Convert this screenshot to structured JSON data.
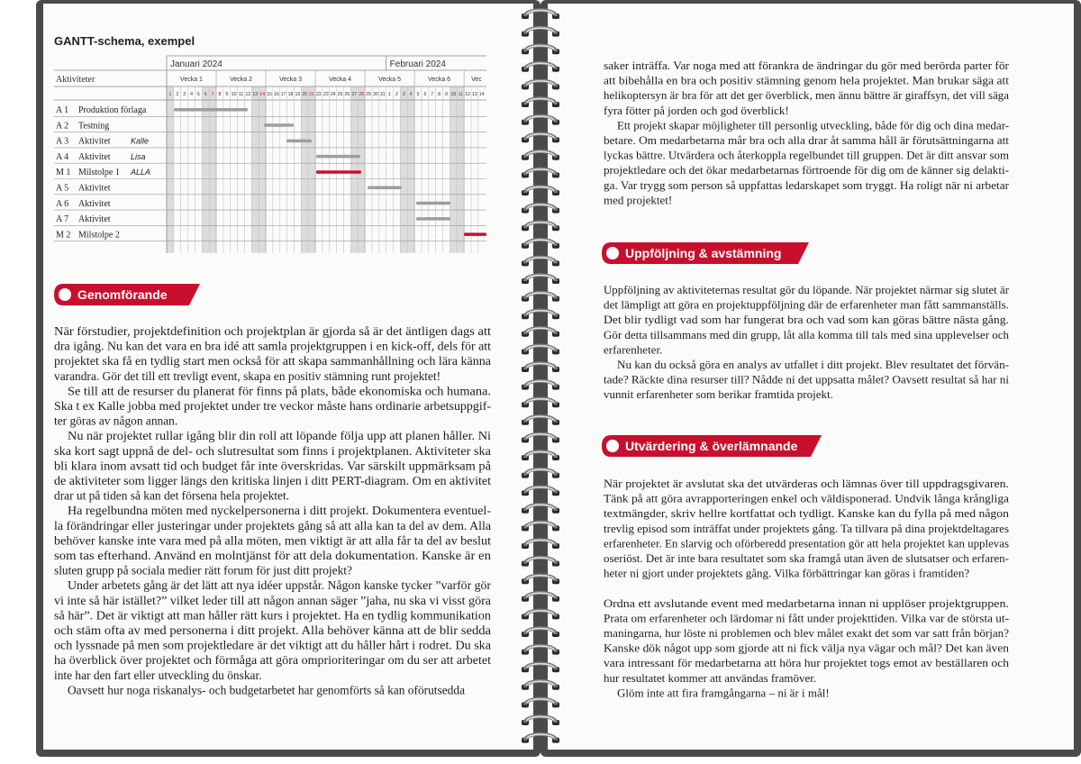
{
  "left_page": {
    "gantt": {
      "title": "GANTT-schema, exempel",
      "header": "Aktiviteter",
      "months": [
        "Januari 2024",
        "Februari 2024"
      ],
      "weeks": [
        "Vecka 1",
        "Vecka 2",
        "Vecka 3",
        "Vecka 4",
        "Vecka 5",
        "Vecka 6",
        "Vec"
      ],
      "days": [
        1,
        2,
        3,
        4,
        5,
        6,
        7,
        8,
        9,
        10,
        11,
        12,
        13,
        14,
        15,
        16,
        17,
        18,
        19,
        20,
        21,
        22,
        23,
        24,
        25,
        26,
        27,
        28,
        29,
        30,
        31,
        1,
        2,
        3,
        4,
        5,
        6,
        7,
        8,
        9,
        10,
        11,
        12,
        13,
        14
      ],
      "rows": [
        {
          "code": "A 1",
          "name": "Produktion förlaga"
        },
        {
          "code": "A 2",
          "name": "Testning"
        },
        {
          "code": "A 3",
          "name": "Aktivitet",
          "person": "Kalle"
        },
        {
          "code": "A 4",
          "name": "Aktivitet",
          "person": "Lisa"
        },
        {
          "code": "M 1",
          "name": "Milstolpe 1",
          "person": "ALLA"
        },
        {
          "code": "A 5",
          "name": "Aktivitet"
        },
        {
          "code": "A 6",
          "name": "Aktivitet"
        },
        {
          "code": "A 7",
          "name": "Aktivitet"
        },
        {
          "code": "M 2",
          "name": "Milstolpe 2"
        }
      ]
    },
    "section": {
      "heading": "Genomförande",
      "paragraphs": [
        {
          "indent": false,
          "lines": [
            "När förstudier, projektdefinition och projektplan är gjorda så är det äntligen dags att",
            "dra igång. Nu kan det vara en bra idé att samla projektgruppen i en kick-off, dels för att",
            "projektet ska få en tydlig start men också för att skapa sammanhållning och lära känna",
            "varandra. Gör det till ett trevligt event, skapa en positiv stämning runt projektet!"
          ]
        },
        {
          "indent": true,
          "lines": [
            "Se till att de resurser du planerat för finns på plats, både ekonomiska och humana.",
            "Ska t ex Kalle jobba med projektet under tre veckor måste hans ordinarie arbetsuppgif-",
            "ter göras av någon annan."
          ]
        },
        {
          "indent": true,
          "lines": [
            "Nu när projektet rullar igång blir din roll att löpande följa upp att planen håller. Ni",
            "ska kort sagt uppnå de del- och slutresultat som finns i projektplanen. Aktiviteter ska",
            "bli klara inom avsatt tid och budget får inte överskridas. Var särskilt uppmärksam på",
            "de aktiviteter som ligger längs den kritiska linjen i ditt PERT-diagram. Om en aktivitet",
            "drar ut på tiden så kan det försena hela projektet."
          ]
        },
        {
          "indent": true,
          "lines": [
            "Ha regelbundna möten med nyckelpersonerna i ditt projekt. Dokumentera eventuel-",
            "la förändringar eller justeringar under projektets gång så att alla kan ta del av dem. Alla",
            "behöver kanske inte vara med på alla möten, men viktigt är att alla får ta del av beslut",
            "som tas efterhand. Använd en molntjänst för att dela dokumentation. Kanske är en",
            "sluten grupp på sociala medier rätt forum för just ditt projekt?"
          ]
        },
        {
          "indent": true,
          "lines": [
            "Under arbetets gång är det lätt att nya idéer uppstår. Någon kanske tycker ”varför gör",
            "vi inte så här istället?” vilket leder till att någon annan säger ”jaha, nu ska vi visst göra",
            "så här”. Det är viktigt att man håller rätt kurs i projektet. Ha en tydlig kommunikation",
            "och stäm ofta av med personerna i ditt projekt. Alla behöver känna att de blir sedda",
            "och lyssnade på men som projektledare är det viktigt att du håller hårt i rodret. Du ska",
            "ha överblick över projektet och förmåga att göra omprioriteringar om du ser att arbetet",
            "inte har den fart eller utveckling du önskar."
          ]
        },
        {
          "indent": true,
          "lines": [
            "Oavsett hur noga riskanalys- och budgetarbetet har genomförts så kan oförutsedda"
          ]
        }
      ]
    }
  },
  "right_page": {
    "continuation": [
      {
        "indent": false,
        "lines": [
          "saker inträffa. Var noga med att förankra de ändringar du gör med berörda parter för",
          "att bibehålla en bra och positiv stämning genom hela projektet. Man brukar säga att",
          "helikoptersyn är bra för att det ger överblick, men ännu bättre är giraffsyn, det vill säga",
          "fyra fötter på jorden och god överblick!"
        ]
      },
      {
        "indent": true,
        "lines": [
          "Ett projekt skapar möjligheter till personlig utveckling, både för dig och dina medar-",
          "betare. Om medarbetarna mår bra och alla drar åt samma håll är förutsättningarna att",
          "lyckas bättre. Utvärdera och återkoppla regelbundet till gruppen. Det är ditt ansvar som",
          "projektledare och det ökar medarbetarnas förtroende för dig om de känner sig delakti-",
          "ga. Var trygg som person så uppfattas ledarskapet som tryggt. Ha roligt när ni arbetar",
          "med projektet!"
        ]
      }
    ],
    "sections": [
      {
        "heading": "Uppföljning & avstämning",
        "paragraphs": [
          {
            "indent": false,
            "lines": [
              "Uppföljning av aktiviteternas resultat gör du löpande. När projektet närmar sig slutet är",
              "det lämpligt att göra en projektuppföljning där de erfarenheter man fått sammanställs.",
              "Det blir tydligt vad som har fungerat bra och vad som kan göras bättre nästa gång.",
              "Gör detta tillsammans med din grupp, låt alla komma till tals med sina upplevelser och",
              "erfarenheter."
            ]
          },
          {
            "indent": true,
            "lines": [
              "Nu kan du också göra en analys av utfallet i ditt projekt. Blev resultatet det förvän-",
              "tade? Räckte dina resurser till? Nådde ni det uppsatta målet? Oavsett resultat så har ni",
              "vunnit erfarenheter som berikar framtida projekt."
            ]
          }
        ]
      },
      {
        "heading": "Utvärdering & överlämnande",
        "paragraphs": [
          {
            "indent": false,
            "lines": [
              "När projektet är avslutat ska det utvärderas och lämnas över till uppdragsgivaren.",
              "Tänk på att göra avrapporteringen enkel och väldisponerad. Undvik långa krångliga",
              "textmängder, skriv hellre kortfattat och tydligt. Kanske kan du fylla på med någon",
              "trevlig episod som inträffat under projektets gång. Ta tillvara på dina projektdeltagares",
              "erfarenheter. En slarvig och oförberedd presentation gör att hela projektet kan upplevas",
              "oseriöst. Det är inte bara resultatet som ska framgå utan även de slutsatser och erfaren-",
              "heter ni gjort under projektets gång. Vilka förbättringar kan göras i framtiden?"
            ]
          },
          {
            "indent": false,
            "space_before": true,
            "lines": [
              "Ordna ett avslutande event med medarbetarna innan ni upplöser projektgruppen.",
              "Prata om erfarenheter och lärdomar ni fått under projekttiden. Vilka var de största ut-",
              "maningarna, hur löste ni problemen och blev målet exakt det som var satt från början?",
              "Kanske dök något upp som gjorde att ni fick välja nya vägar och mål? Det kan även",
              "vara intressant för medarbetarna att höra hur projektet togs emot av beställaren och",
              "hur resultatet kommer att användas framöver."
            ]
          },
          {
            "indent": true,
            "lines": [
              "Glöm inte att fira framgångarna – ni är i mål!"
            ]
          }
        ]
      }
    ]
  }
}
